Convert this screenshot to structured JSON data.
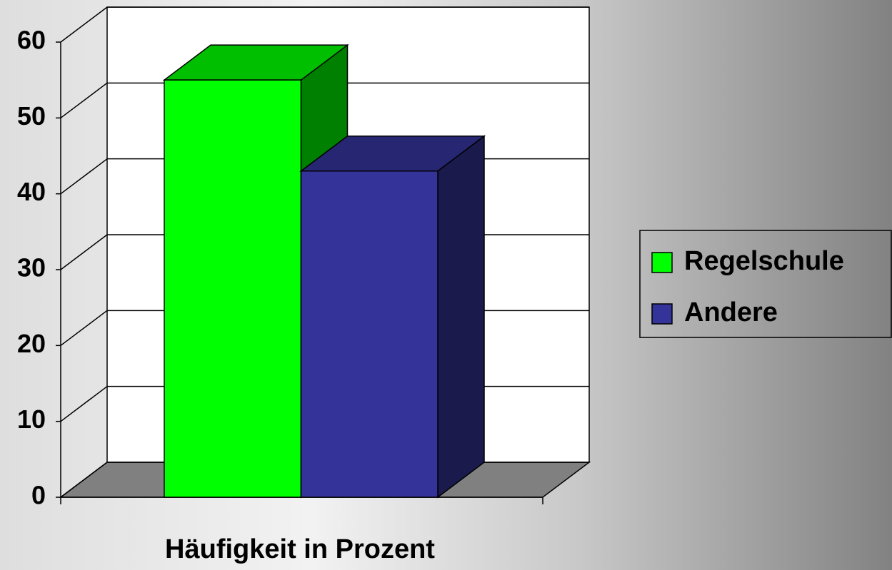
{
  "chart_data": {
    "type": "bar3d",
    "x_label": "Häufigkeit in Prozent",
    "series": [
      {
        "name": "Regelschule",
        "color": "#00ff00",
        "values": [
          55
        ]
      },
      {
        "name": "Andere",
        "color": "#333399",
        "values": [
          43
        ]
      }
    ],
    "ylim": [
      0,
      60
    ],
    "yticks": [
      0,
      10,
      20,
      30,
      40,
      50,
      60
    ],
    "grid": true,
    "legend": "right"
  }
}
